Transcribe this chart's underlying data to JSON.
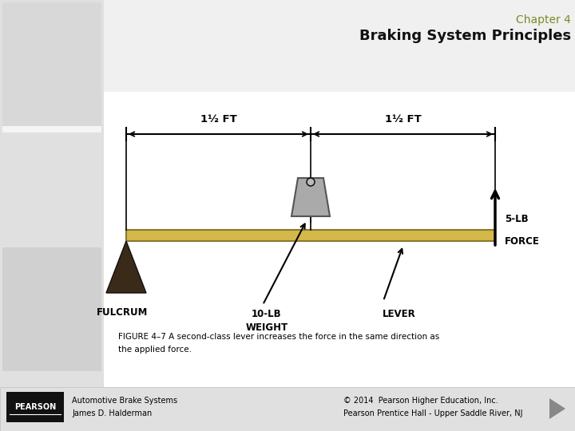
{
  "bg_color": "#e8e8e8",
  "white_panel_color": "#ffffff",
  "left_strip_color": "#d0d0d0",
  "title_chapter": "Chapter 4",
  "title_main": "Braking System Principles",
  "title_color_chapter": "#7a8c2a",
  "title_color_main": "#111111",
  "lever_color": "#d4b84a",
  "lever_edge_color": "#8a7830",
  "fulcrum_color": "#3a2a1a",
  "weight_color": "#aaaaaa",
  "weight_edge_color": "#555555",
  "label_1_5ft_left": "1½ FT",
  "label_1_5ft_right": "1½ FT",
  "label_fulcrum": "FULCRUM",
  "label_weight_line1": "10-LB",
  "label_weight_line2": "WEIGHT",
  "label_lever": "LEVER",
  "label_force_line1": "5-LB",
  "label_force_line2": "FORCE",
  "figure_caption_line1": "FIGURE 4–7 A second-class lever increases the force in the same direction as",
  "figure_caption_line2": "the applied force.",
  "footer_left_line1": "Automotive Brake Systems",
  "footer_left_line2": "James D. Halderman",
  "footer_right_line1": "© 2014  Pearson Higher Education, Inc.",
  "footer_right_line2": "Pearson Prentice Hall - Upper Saddle River, NJ",
  "pearson_logo_text": "PEARSON"
}
